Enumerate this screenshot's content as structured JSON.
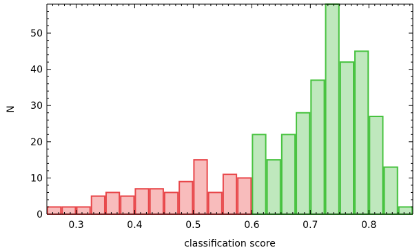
{
  "chart_data": {
    "type": "bar",
    "xlabel": "classification score",
    "ylabel": "N",
    "xlim": [
      0.25,
      0.875
    ],
    "ylim": [
      0,
      58
    ],
    "xticks": [
      0.3,
      0.4,
      0.5,
      0.6,
      0.7,
      0.8
    ],
    "yticks": [
      0,
      10,
      20,
      30,
      40,
      50
    ],
    "xtick_labels": [
      "0.3",
      "0.4",
      "0.5",
      "0.6",
      "0.7",
      "0.8"
    ],
    "ytick_labels": [
      "0",
      "10",
      "20",
      "30",
      "40",
      "50"
    ],
    "bin_width": 0.025,
    "series": [
      {
        "color_fill": "#f8bcbc",
        "color_edge": "#e8474a",
        "bins": [
          {
            "x0": 0.25,
            "x1": 0.275,
            "value": 2
          },
          {
            "x0": 0.275,
            "x1": 0.3,
            "value": 2
          },
          {
            "x0": 0.3,
            "x1": 0.325,
            "value": 2
          },
          {
            "x0": 0.325,
            "x1": 0.35,
            "value": 5
          },
          {
            "x0": 0.35,
            "x1": 0.375,
            "value": 6
          },
          {
            "x0": 0.375,
            "x1": 0.4,
            "value": 5
          },
          {
            "x0": 0.4,
            "x1": 0.425,
            "value": 7
          },
          {
            "x0": 0.425,
            "x1": 0.45,
            "value": 7
          },
          {
            "x0": 0.45,
            "x1": 0.475,
            "value": 6
          },
          {
            "x0": 0.475,
            "x1": 0.5,
            "value": 9
          },
          {
            "x0": 0.5,
            "x1": 0.525,
            "value": 15
          },
          {
            "x0": 0.525,
            "x1": 0.55,
            "value": 6
          },
          {
            "x0": 0.55,
            "x1": 0.575,
            "value": 11
          },
          {
            "x0": 0.575,
            "x1": 0.6,
            "value": 10
          }
        ]
      },
      {
        "color_fill": "#bfe8bd",
        "color_edge": "#46c23e",
        "bins": [
          {
            "x0": 0.6,
            "x1": 0.625,
            "value": 22
          },
          {
            "x0": 0.625,
            "x1": 0.65,
            "value": 15
          },
          {
            "x0": 0.65,
            "x1": 0.675,
            "value": 22
          },
          {
            "x0": 0.675,
            "x1": 0.7,
            "value": 28
          },
          {
            "x0": 0.7,
            "x1": 0.725,
            "value": 37
          },
          {
            "x0": 0.725,
            "x1": 0.75,
            "value": 58
          },
          {
            "x0": 0.75,
            "x1": 0.775,
            "value": 42
          },
          {
            "x0": 0.775,
            "x1": 0.8,
            "value": 45
          },
          {
            "x0": 0.8,
            "x1": 0.825,
            "value": 27
          },
          {
            "x0": 0.825,
            "x1": 0.85,
            "value": 13
          },
          {
            "x0": 0.85,
            "x1": 0.875,
            "value": 2
          }
        ]
      }
    ]
  }
}
